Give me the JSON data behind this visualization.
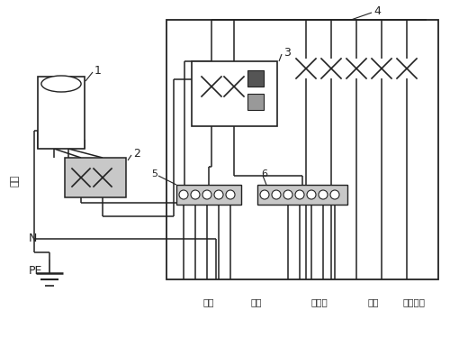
{
  "bg_color": "#ffffff",
  "line_color": "#222222",
  "gray_fill": "#c8c8c8",
  "label_1": "1",
  "label_2": "2",
  "label_3": "3",
  "label_4": "4",
  "label_5": "5",
  "label_6": "6",
  "label_huoxian": "火线",
  "label_N": "N",
  "label_PE": "PE",
  "labels_bottom": [
    "照明",
    "厨房",
    "卫生间",
    "空调",
    "一般插座"
  ]
}
